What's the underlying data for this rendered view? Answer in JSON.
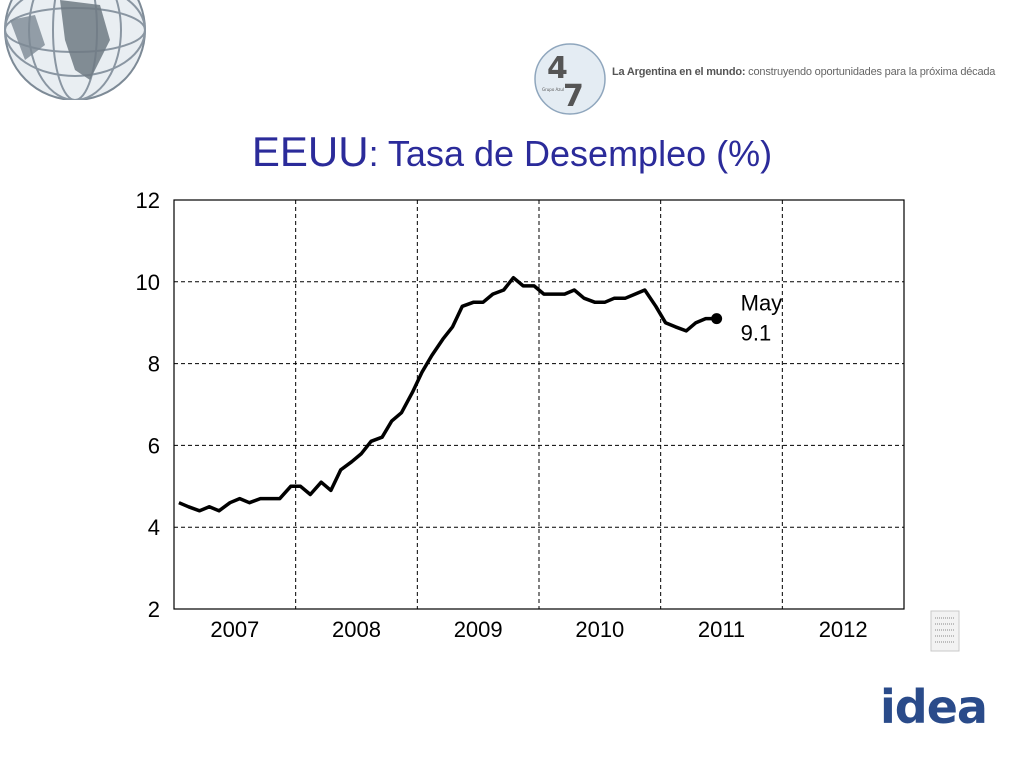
{
  "header": {
    "tagline_bold": "La Argentina en el mundo:",
    "tagline_rest": " construyendo oportunidades para la próxima década",
    "logo_text": "47",
    "logo_sub": "Grupo Azul"
  },
  "title": {
    "main": "EEUU",
    "sub": ": Tasa de Desempleo (%)"
  },
  "footer": {
    "logo": "idea"
  },
  "chart_data": {
    "type": "line",
    "title": "EEUU: Tasa de Desempleo (%)",
    "ylabel": "",
    "xlabel": "",
    "ylim": [
      2,
      12
    ],
    "xlim": [
      2006.5,
      2012.5
    ],
    "yticks": [
      2,
      4,
      6,
      8,
      10,
      12
    ],
    "xtick_labels": [
      "2007",
      "2008",
      "2009",
      "2010",
      "2011",
      "2012"
    ],
    "grid": true,
    "series": [
      {
        "name": "",
        "x": [
          2006.54,
          2006.62,
          2006.71,
          2006.79,
          2006.87,
          2006.96,
          2007.04,
          2007.12,
          2007.21,
          2007.29,
          2007.37,
          2007.46,
          2007.54,
          2007.62,
          2007.71,
          2007.79,
          2007.87,
          2007.96,
          2008.04,
          2008.12,
          2008.21,
          2008.29,
          2008.37,
          2008.46,
          2008.54,
          2008.62,
          2008.71,
          2008.79,
          2008.87,
          2008.96,
          2009.04,
          2009.12,
          2009.21,
          2009.29,
          2009.37,
          2009.46,
          2009.54,
          2009.62,
          2009.71,
          2009.79,
          2009.87,
          2009.96,
          2010.04,
          2010.12,
          2010.21,
          2010.29,
          2010.37,
          2010.46,
          2010.54,
          2010.62,
          2010.71,
          2010.79,
          2010.87,
          2010.96
        ],
        "values": [
          4.6,
          4.5,
          4.4,
          4.5,
          4.4,
          4.6,
          4.7,
          4.6,
          4.7,
          4.7,
          4.7,
          5.0,
          5.0,
          4.8,
          5.1,
          4.9,
          5.4,
          5.6,
          5.8,
          6.1,
          6.2,
          6.6,
          6.8,
          7.3,
          7.8,
          8.2,
          8.6,
          8.9,
          9.4,
          9.5,
          9.5,
          9.7,
          9.8,
          10.1,
          9.9,
          9.9,
          9.7,
          9.7,
          9.7,
          9.8,
          9.6,
          9.5,
          9.5,
          9.6,
          9.6,
          9.7,
          9.8,
          9.4,
          9.0,
          8.9,
          8.8,
          9.0,
          9.1,
          9.1
        ]
      }
    ],
    "annotation": {
      "line1": "May",
      "line2": "9.1",
      "x": 2010.96,
      "y": 9.1
    }
  }
}
